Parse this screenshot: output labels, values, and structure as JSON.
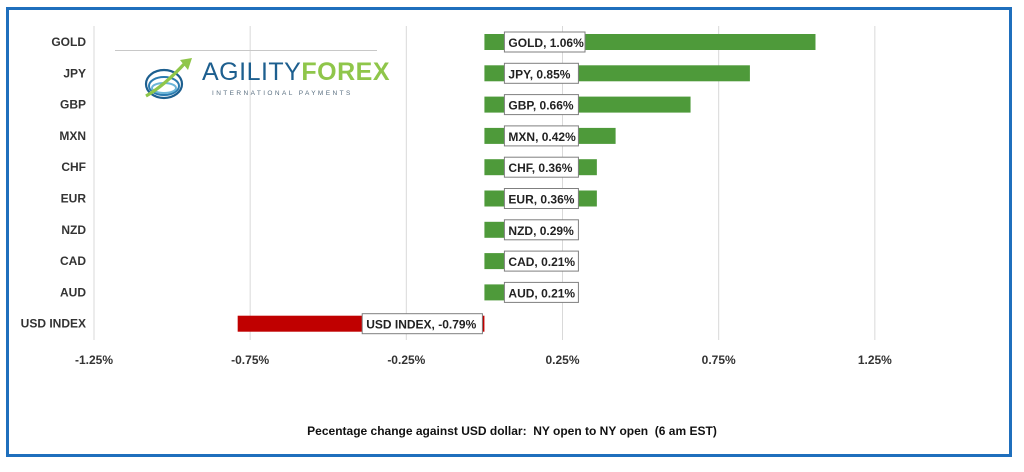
{
  "logo": {
    "word_light": "AGILITY",
    "word_bold": "FOREX",
    "tagline": "INTERNATIONAL PAYMENTS"
  },
  "colors": {
    "frame": "#1f6fbd",
    "positive": "#4e9a3a",
    "negative": "#c00000",
    "grid": "#d9d9d9",
    "label_border": "#7f7f7f"
  },
  "chart_data": {
    "type": "bar",
    "orientation": "horizontal",
    "categories": [
      "GOLD",
      "JPY",
      "GBP",
      "MXN",
      "CHF",
      "EUR",
      "NZD",
      "CAD",
      "AUD",
      "USD INDEX"
    ],
    "values": [
      1.06,
      0.85,
      0.66,
      0.42,
      0.36,
      0.36,
      0.29,
      0.21,
      0.21,
      -0.79
    ],
    "data_labels": [
      "GOLD, 1.06%",
      "JPY, 0.85%",
      "GBP, 0.66%",
      "MXN, 0.42%",
      "CHF, 0.36%",
      "EUR, 0.36%",
      "NZD, 0.29%",
      "CAD, 0.21%",
      "AUD, 0.21%",
      "USD INDEX, -0.79%"
    ],
    "xlim": [
      -1.25,
      1.75
    ],
    "xticks": [
      -1.25,
      -0.75,
      -0.25,
      0.25,
      0.75,
      1.25
    ],
    "xtick_labels": [
      "-1.25%",
      "-0.75%",
      "-0.25%",
      "0.25%",
      "0.75%",
      "1.25%"
    ],
    "title": "",
    "xlabel": "Pecentage change against USD dollar:  NY open to NY open  (6 am EST)",
    "ylabel": "",
    "grid": "vertical",
    "legend": "none"
  }
}
